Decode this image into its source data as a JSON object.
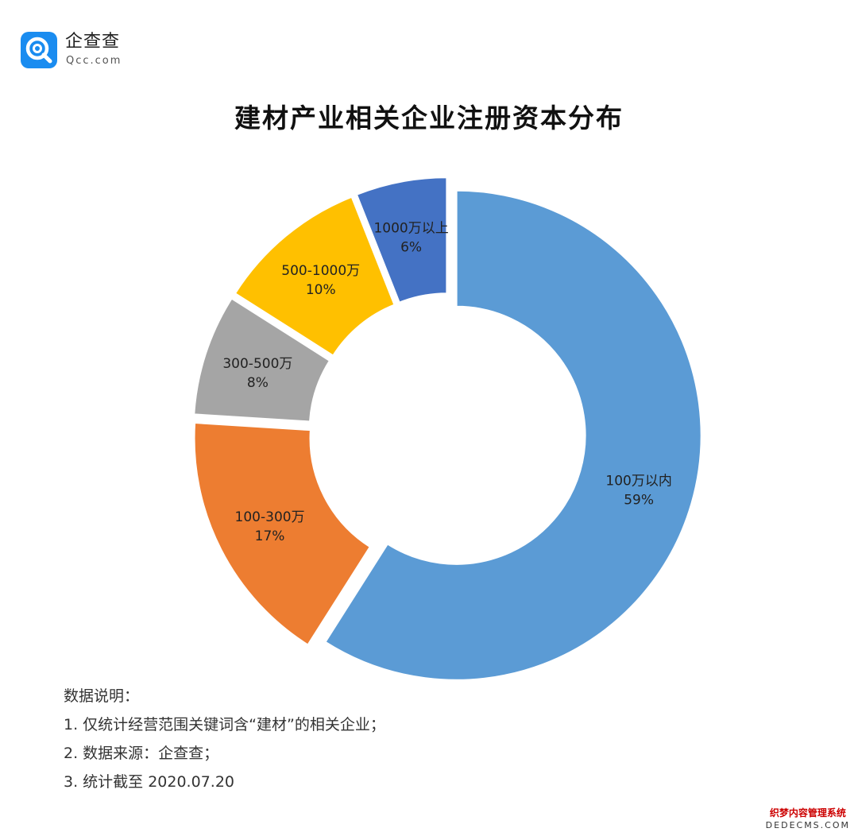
{
  "brand": {
    "name": "企查查",
    "domain": "Qcc.com",
    "accent": "#1a8cf0",
    "icon": "magnifier-q-logo-icon"
  },
  "chart_data": {
    "type": "pie",
    "variant": "donut",
    "title": "建材产业相关企业注册资本分布",
    "categories": [
      "100万以内",
      "100-300万",
      "300-500万",
      "500-1000万",
      "1000万以上"
    ],
    "values": [
      59,
      17,
      8,
      10,
      6
    ],
    "value_labels": [
      "59%",
      "17%",
      "8%",
      "10%",
      "6%"
    ],
    "unit": "%",
    "colors": [
      "#5b9bd5",
      "#ed7d31",
      "#a5a5a5",
      "#ffc000",
      "#4472c4"
    ],
    "exploded": true,
    "legend": "none",
    "label_placement": "on-slice"
  },
  "notes": {
    "heading": "数据说明：",
    "items": [
      "1. 仅统计经营范围关键词含“建材”的相关企业；",
      "2. 数据来源：企查查；",
      "3. 统计截至 2020.07.20"
    ]
  },
  "watermark": {
    "line1": "织梦内容管理系统",
    "line2": "DEDECMS.COM"
  }
}
